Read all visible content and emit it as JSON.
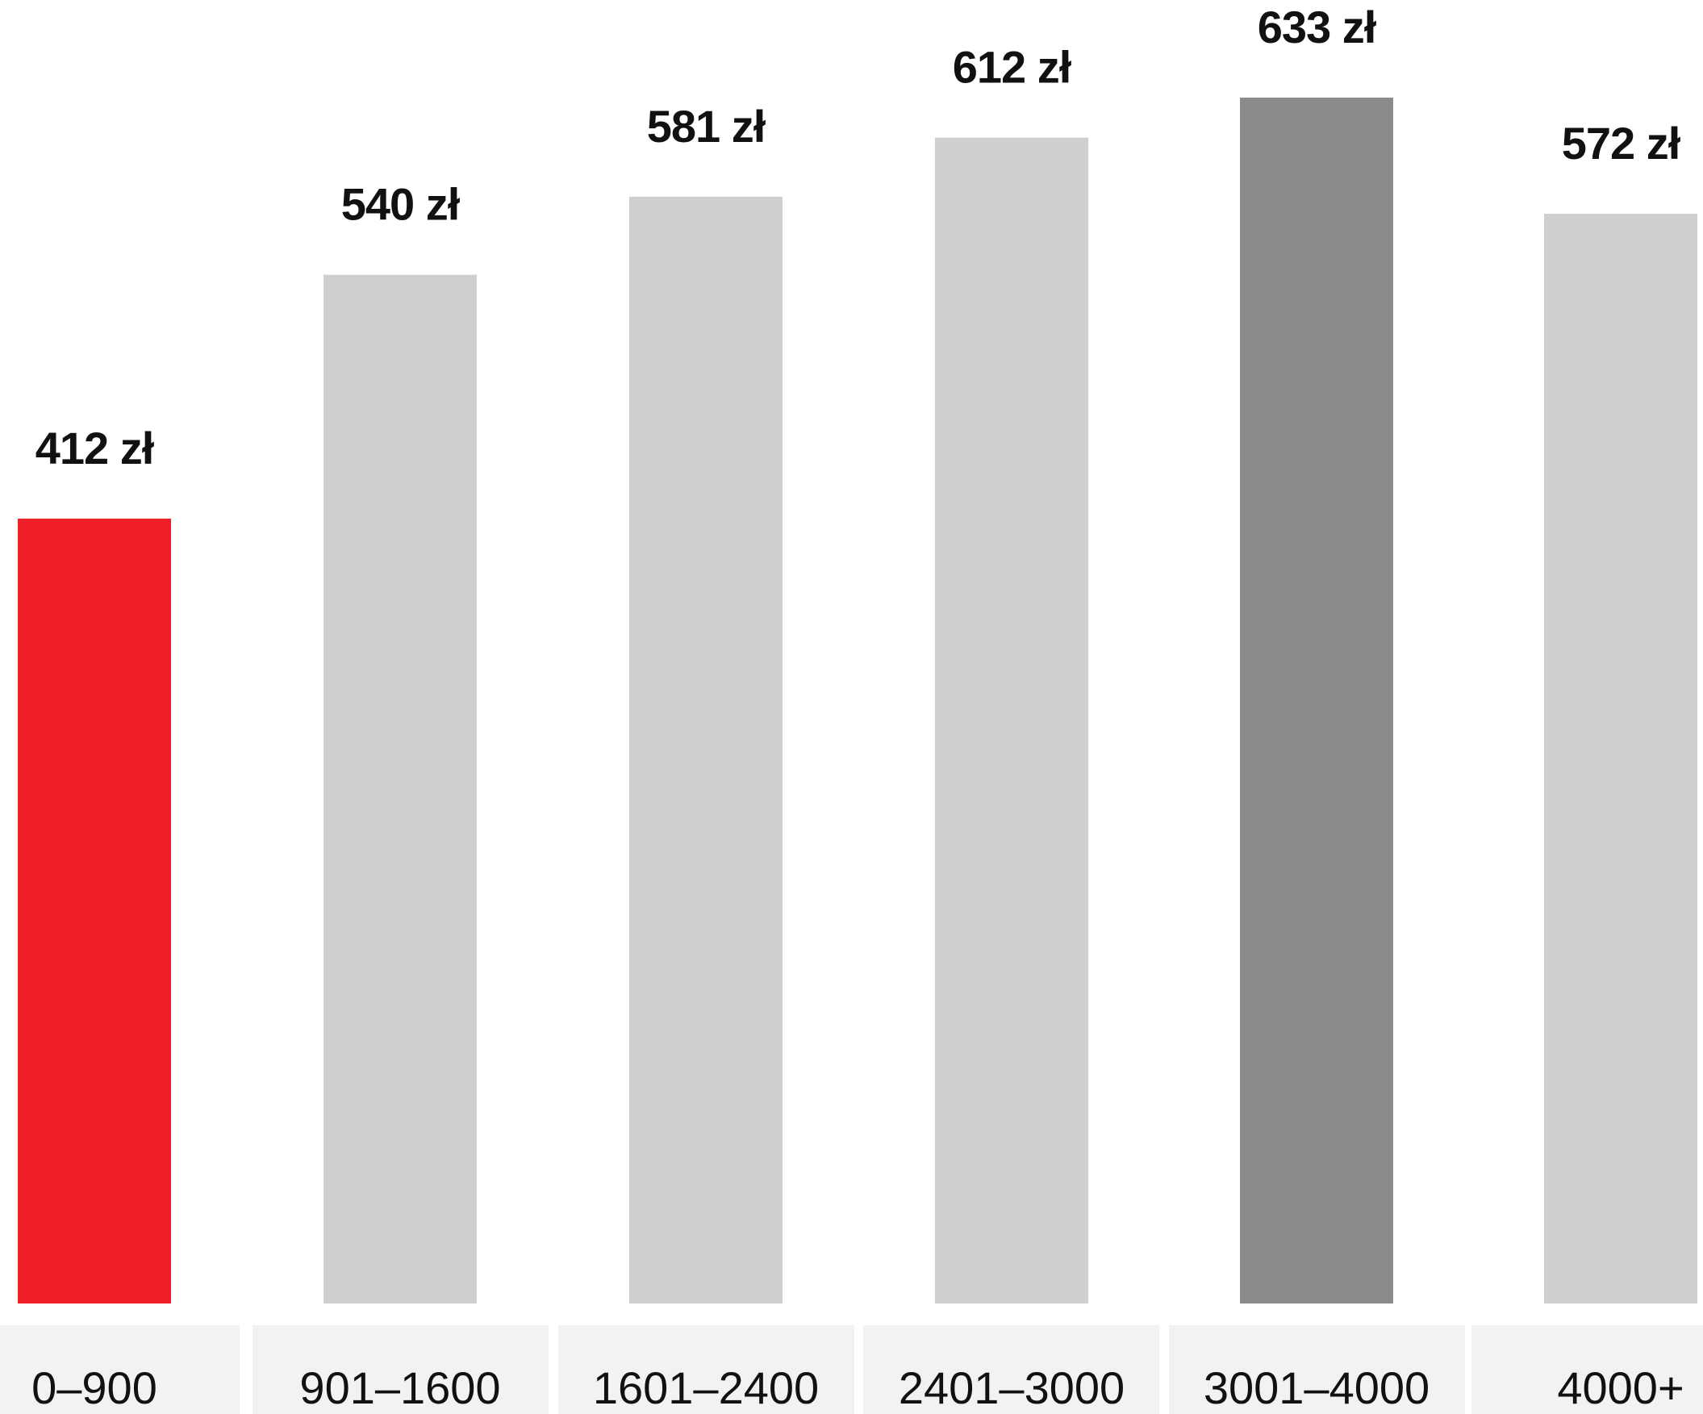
{
  "chart_data": {
    "type": "bar",
    "categories": [
      "0–900",
      "901–1600",
      "1601–2400",
      "2401–3000",
      "3001–4000",
      "4000+"
    ],
    "values": [
      412,
      540,
      581,
      612,
      633,
      572
    ],
    "value_labels": [
      "412 zł",
      "540 zł",
      "581 zł",
      "612 zł",
      "633 zł",
      "572 zł"
    ],
    "colors": [
      "#ee1f27",
      "#cfcfcf",
      "#cfcfcf",
      "#cfcfcf",
      "#8a8a8a",
      "#cfcfcf"
    ],
    "category_band_color": "#f2f2f2",
    "title": "",
    "xlabel": "",
    "ylabel": "",
    "ylim": [
      0,
      700
    ],
    "grid": false,
    "legend": "none"
  }
}
